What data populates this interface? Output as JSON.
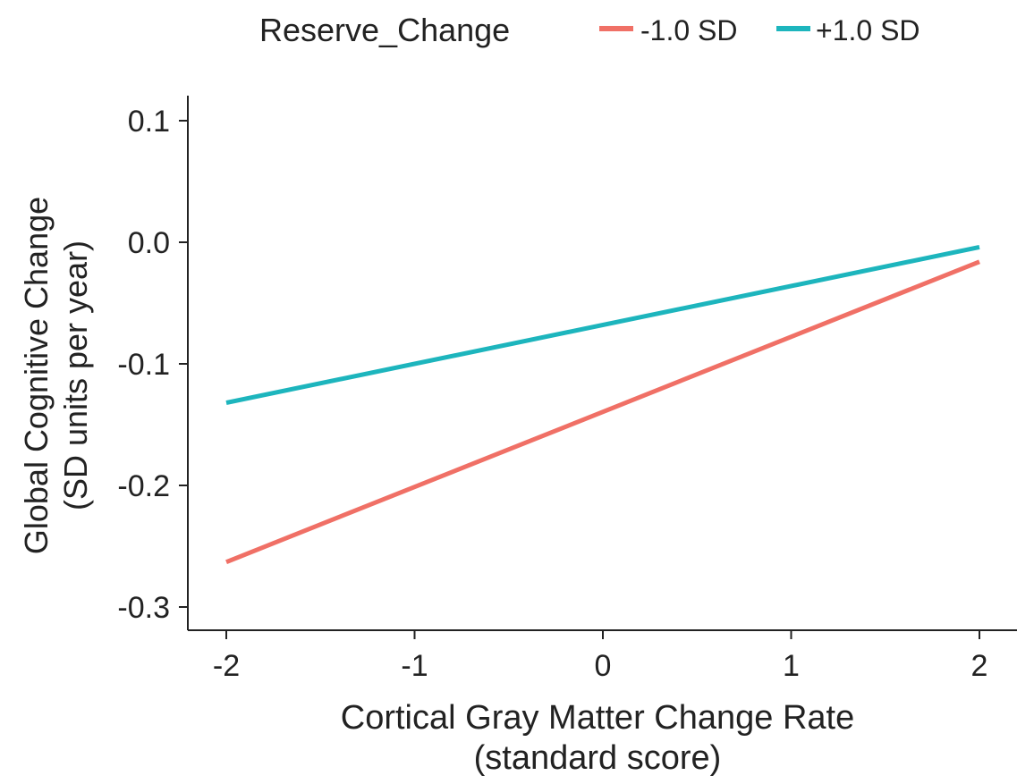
{
  "chart_data": {
    "type": "line",
    "legend": {
      "title": "Reserve_Change",
      "position": "top"
    },
    "xlabel": [
      "Cortical Gray Matter Change Rate",
      "(standard score)"
    ],
    "ylabel": [
      "Global Cognitive Change",
      "(SD units per year)"
    ],
    "xlim": [
      -2.2,
      2.2
    ],
    "ylim": [
      -0.3,
      0.1
    ],
    "x_ticks": [
      -2,
      -1,
      0,
      1,
      2
    ],
    "x_tick_labels": [
      "-2",
      "-1",
      "0",
      "1",
      "2"
    ],
    "y_ticks": [
      -0.3,
      -0.2,
      -0.1,
      0.0,
      0.1
    ],
    "y_tick_labels": [
      "-0.3",
      "-0.2",
      "-0.1",
      "0.0",
      "0.1"
    ],
    "grid": false,
    "series": [
      {
        "name": "-1.0 SD",
        "color": "#F07066",
        "x": [
          -2,
          2
        ],
        "y": [
          -0.263,
          -0.016
        ]
      },
      {
        "name": "+1.0 SD",
        "color": "#1DB5BD",
        "x": [
          -2,
          2
        ],
        "y": [
          -0.132,
          -0.004
        ]
      }
    ]
  }
}
